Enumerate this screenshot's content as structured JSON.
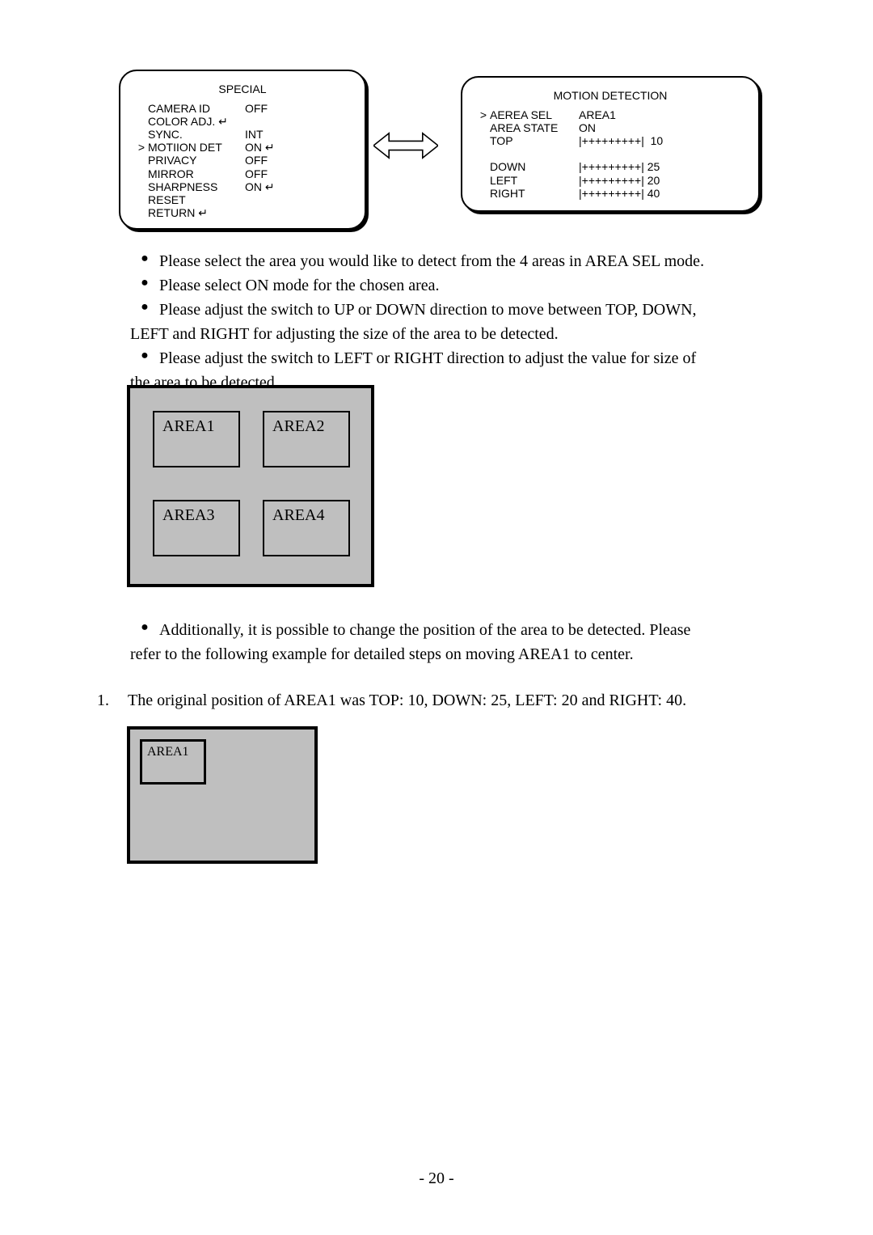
{
  "special_menu": {
    "title": "SPECIAL",
    "rows": [
      {
        "cursor": "",
        "label": "CAMERA ID",
        "value": "OFF",
        "enter": false
      },
      {
        "cursor": "",
        "label": "COLOR ADJ.",
        "value": "",
        "enter": true
      },
      {
        "cursor": "",
        "label": "SYNC.",
        "value": "INT",
        "enter": false
      },
      {
        "cursor": ">",
        "label": "MOTIION DET",
        "value": "ON",
        "enter": true
      },
      {
        "cursor": "",
        "label": "PRIVACY",
        "value": "OFF",
        "enter": false
      },
      {
        "cursor": "",
        "label": "MIRROR",
        "value": "OFF",
        "enter": false
      },
      {
        "cursor": "",
        "label": "SHARPNESS",
        "value": "ON",
        "enter": true
      },
      {
        "cursor": "",
        "label": "RESET",
        "value": "",
        "enter": false
      },
      {
        "cursor": "",
        "label": "RETURN",
        "value": "",
        "enter": true
      }
    ]
  },
  "motion_menu": {
    "title": "MOTION DETECTION",
    "rows": [
      {
        "cursor": ">",
        "label": "AEREA SEL",
        "value": "AREA1"
      },
      {
        "cursor": "",
        "label": "AREA STATE",
        "value": "ON"
      },
      {
        "cursor": "",
        "label": "TOP",
        "value": "|+++++++++|  10"
      },
      {
        "blank": true
      },
      {
        "cursor": "",
        "label": "DOWN",
        "value": "|+++++++++| 25"
      },
      {
        "cursor": "",
        "label": "LEFT",
        "value": "|+++++++++| 20"
      },
      {
        "cursor": "",
        "label": "RIGHT",
        "value": "|+++++++++| 40"
      }
    ]
  },
  "enter_glyph": "↵",
  "bullets": {
    "b1": "Please select the area you would like to detect from the 4 areas in AREA SEL mode.",
    "b2": "Please select ON mode for the chosen area.",
    "b3_first": "Please adjust the switch to UP or DOWN direction to move between TOP, DOWN,",
    "b3_cont": "LEFT and RIGHT for adjusting the size of the area to be detected.",
    "b4_first": "Please adjust the switch to LEFT or RIGHT direction to adjust the value for size of",
    "b4_cont": "the area to be detected.",
    "b5_first": "Additionally, it is possible to change the position of the area to be detected. Please",
    "b5_cont": "refer to the following example for detailed steps on moving AREA1 to center."
  },
  "areas": {
    "a1": "AREA1",
    "a2": "AREA2",
    "a3": "AREA3",
    "a4": "AREA4"
  },
  "numbered": {
    "n1": "1.",
    "t1": "The original position of AREA1 was TOP: 10, DOWN: 25, LEFT: 20 and RIGHT: 40."
  },
  "page_number": "- 20 -",
  "colors": {
    "grid_bg": "#bfbfbf",
    "border": "#000000",
    "page_bg": "#ffffff"
  }
}
